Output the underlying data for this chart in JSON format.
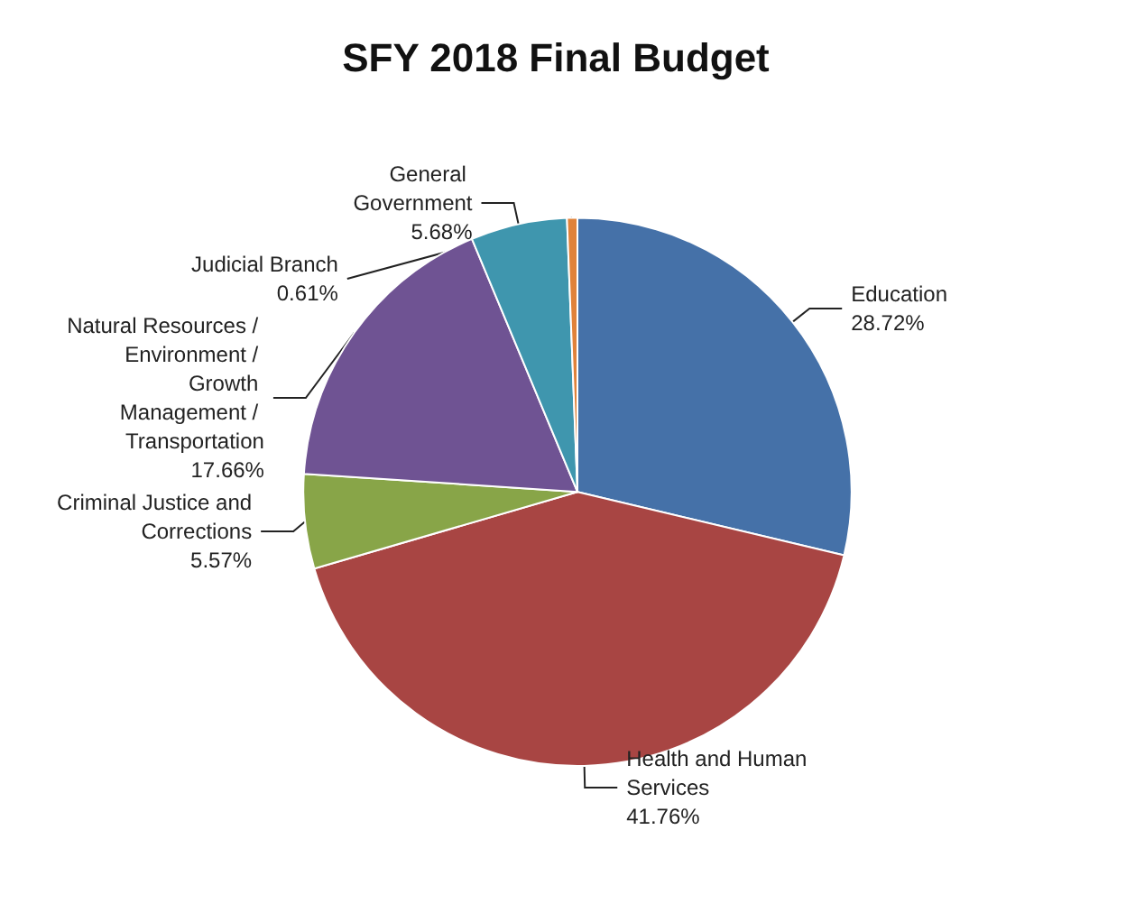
{
  "chart_data": {
    "type": "pie",
    "title": "SFY 2018 Final Budget",
    "categories": [
      "Education",
      "Health and Human Services",
      "Criminal Justice and Corrections",
      "Natural Resources / Environment / Growth Management / Transportation",
      "General Government",
      "Judicial Branch"
    ],
    "values": [
      28.72,
      41.76,
      5.57,
      17.66,
      5.68,
      0.61
    ],
    "colors": [
      "#4571a8",
      "#a84543",
      "#88a548",
      "#6f5393",
      "#3f96ae",
      "#e0823a"
    ],
    "value_labels": [
      "28.72%",
      "41.76%",
      "5.57%",
      "17.66%",
      "5.68%",
      "0.61%"
    ],
    "legend": false
  }
}
